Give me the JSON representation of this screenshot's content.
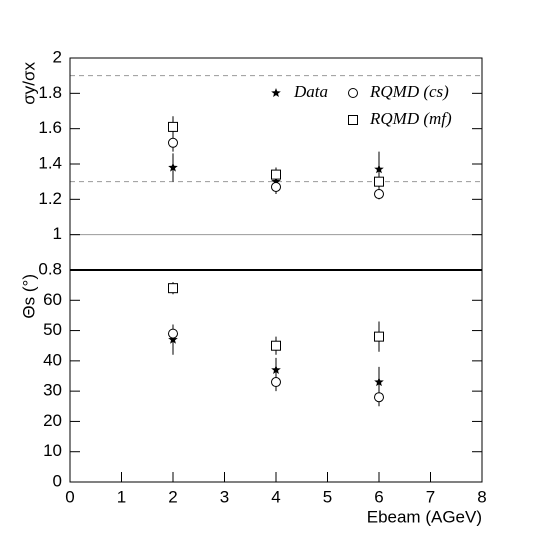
{
  "chart_data": [
    {
      "type": "scatter",
      "ylabel": "σy/σx",
      "xlim": [
        0,
        8
      ],
      "ylim": [
        0.8,
        2
      ],
      "yticks": [
        0.8,
        1,
        1.2,
        1.4,
        1.6,
        1.8,
        2
      ],
      "legend": "upper right",
      "reference_lines": [
        {
          "value": 1.9,
          "style": "dashed"
        },
        {
          "value": 1.3,
          "style": "dashed"
        },
        {
          "value": 1,
          "style": "solid"
        }
      ],
      "series": [
        {
          "name": "Data",
          "marker": "star",
          "color": "#000000",
          "x": [
            2,
            4,
            6
          ],
          "values": [
            1.38,
            1.3,
            1.37
          ],
          "errors": [
            0.08,
            0.04,
            0.1
          ]
        },
        {
          "name": "RQMD (cs)",
          "marker": "circle",
          "color": "#000000",
          "x": [
            2,
            4,
            6
          ],
          "values": [
            1.52,
            1.27,
            1.23
          ],
          "errors": [
            0.05,
            0.04,
            0.03
          ]
        },
        {
          "name": "RQMD (mf)",
          "marker": "square",
          "color": "#000000",
          "x": [
            2,
            4,
            6
          ],
          "values": [
            1.61,
            1.34,
            1.3
          ],
          "errors": [
            0.06,
            0.04,
            0.04
          ]
        }
      ]
    },
    {
      "type": "scatter",
      "ylabel": "Θs (°)",
      "xlabel": "Ebeam (AGeV)",
      "xlim": [
        0,
        8
      ],
      "ylim": [
        0,
        70
      ],
      "xticks": [
        0,
        1,
        2,
        3,
        4,
        5,
        6,
        7,
        8
      ],
      "yticks": [
        0,
        10,
        20,
        30,
        40,
        50,
        60
      ],
      "series": [
        {
          "marker": "star",
          "color": "#000000",
          "x": [
            2,
            4,
            6
          ],
          "values": [
            47,
            37,
            33
          ],
          "errors": [
            5,
            4,
            5
          ]
        },
        {
          "marker": "circle",
          "color": "#000000",
          "x": [
            2,
            4,
            6
          ],
          "values": [
            49,
            33,
            28
          ],
          "errors": [
            3,
            3,
            3
          ]
        },
        {
          "marker": "square",
          "color": "#000000",
          "x": [
            2,
            4,
            6
          ],
          "values": [
            64,
            45,
            48
          ],
          "errors": [
            2,
            3,
            5
          ]
        }
      ]
    }
  ]
}
